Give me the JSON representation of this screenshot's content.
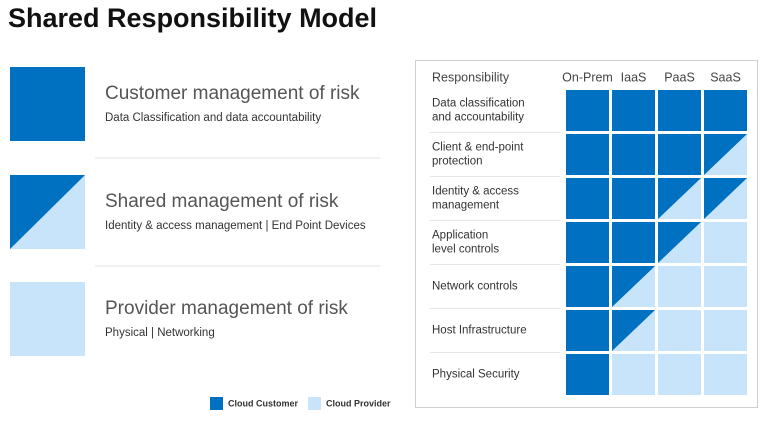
{
  "title": "Shared Responsibility Model",
  "palette": {
    "customer": "#0070c0",
    "provider": "#c7e4fa"
  },
  "models": [
    {
      "kind": "customer",
      "heading": "Customer management of risk",
      "detail": "Data Classification and data accountability"
    },
    {
      "kind": "shared",
      "heading": "Shared management of risk",
      "detail": "Identity & access management | End Point Devices"
    },
    {
      "kind": "provider",
      "heading": "Provider management of risk",
      "detail": "Physical | Networking"
    }
  ],
  "matrix": {
    "header": "Responsibility",
    "columns": [
      "On-Prem",
      "IaaS",
      "PaaS",
      "SaaS"
    ],
    "rows": [
      {
        "label": [
          "Data classification",
          "and accountability"
        ],
        "cells": [
          "customer",
          "customer",
          "customer",
          "customer"
        ]
      },
      {
        "label": [
          "Client & end-point",
          "protection"
        ],
        "cells": [
          "customer",
          "customer",
          "customer",
          "shared"
        ]
      },
      {
        "label": [
          "Identity & access",
          "management"
        ],
        "cells": [
          "customer",
          "customer",
          "shared",
          "shared"
        ]
      },
      {
        "label": [
          "Application",
          "level controls"
        ],
        "cells": [
          "customer",
          "customer",
          "shared",
          "provider"
        ]
      },
      {
        "label": [
          "Network controls"
        ],
        "cells": [
          "customer",
          "shared",
          "provider",
          "provider"
        ]
      },
      {
        "label": [
          "Host Infrastructure"
        ],
        "cells": [
          "customer",
          "shared",
          "provider",
          "provider"
        ]
      },
      {
        "label": [
          "Physical Security"
        ],
        "cells": [
          "customer",
          "provider",
          "provider",
          "provider"
        ]
      }
    ]
  },
  "legend": [
    {
      "kind": "customer",
      "label": "Cloud Customer"
    },
    {
      "kind": "provider",
      "label": "Cloud Provider"
    }
  ]
}
